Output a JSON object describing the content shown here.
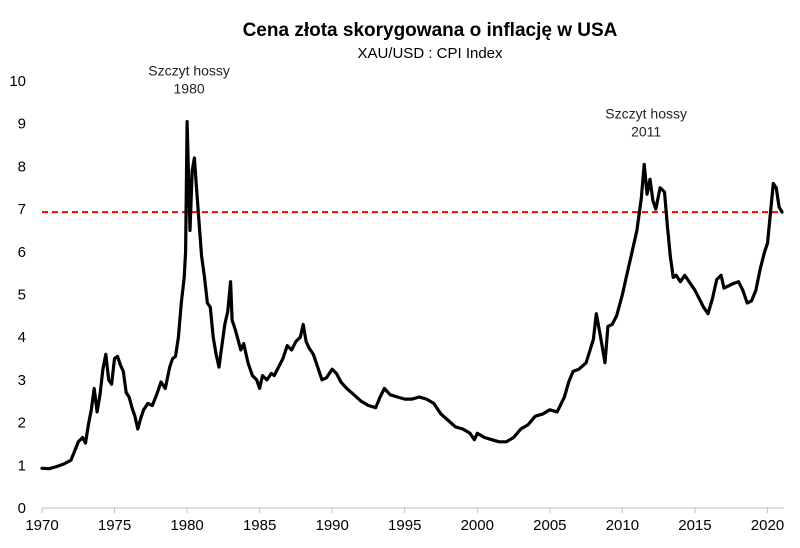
{
  "chart_data": {
    "type": "line",
    "title": "Cena złota skorygowana o inflację w USA",
    "subtitle": "XAU/USD : CPI Index",
    "xlabel": "",
    "ylabel": "",
    "xlim": [
      1970,
      2021
    ],
    "ylim": [
      0,
      10
    ],
    "xticks": [
      1970,
      1975,
      1980,
      1985,
      1990,
      1995,
      2000,
      2005,
      2010,
      2015,
      2020
    ],
    "xtick_labels": [
      "1970",
      "1975",
      "1980",
      "1985",
      "1990",
      "1995",
      "2000",
      "2005",
      "2010",
      "2015",
      "2020"
    ],
    "yticks": [
      0,
      1,
      2,
      3,
      4,
      5,
      6,
      7,
      8,
      9,
      10
    ],
    "ytick_labels": [
      "0",
      "1",
      "2",
      "3",
      "4",
      "5",
      "6",
      "7",
      "8",
      "9",
      "10"
    ],
    "grid": false,
    "reference_line": {
      "y": 6.93,
      "color": "#ff0000",
      "style": "dashed"
    },
    "annotations": [
      {
        "line1": "Szczyt hossy",
        "line2": "1980",
        "x": 1980.0,
        "y": 9.05
      },
      {
        "line1": "Szczyt hossy",
        "line2": "2011",
        "x": 2011.5,
        "y": 8.05
      }
    ],
    "series": [
      {
        "name": "XAU/USD : CPI Index",
        "color": "#000000",
        "x": [
          1970.0,
          1970.5,
          1971.0,
          1971.5,
          1972.0,
          1972.5,
          1972.8,
          1973.0,
          1973.2,
          1973.4,
          1973.6,
          1973.8,
          1974.0,
          1974.2,
          1974.4,
          1974.6,
          1974.8,
          1975.0,
          1975.2,
          1975.4,
          1975.6,
          1975.8,
          1976.0,
          1976.2,
          1976.4,
          1976.6,
          1976.8,
          1977.0,
          1977.3,
          1977.6,
          1977.9,
          1978.2,
          1978.5,
          1978.8,
          1979.0,
          1979.2,
          1979.4,
          1979.6,
          1979.8,
          1979.9,
          1980.0,
          1980.1,
          1980.2,
          1980.35,
          1980.5,
          1980.65,
          1980.8,
          1981.0,
          1981.2,
          1981.4,
          1981.6,
          1981.8,
          1982.0,
          1982.2,
          1982.4,
          1982.6,
          1982.8,
          1983.0,
          1983.1,
          1983.3,
          1983.5,
          1983.7,
          1983.9,
          1984.2,
          1984.5,
          1984.8,
          1985.0,
          1985.2,
          1985.5,
          1985.8,
          1986.0,
          1986.3,
          1986.6,
          1986.9,
          1987.2,
          1987.5,
          1987.8,
          1988.0,
          1988.2,
          1988.4,
          1988.7,
          1989.0,
          1989.3,
          1989.6,
          1990.0,
          1990.3,
          1990.6,
          1991.0,
          1991.5,
          1992.0,
          1992.5,
          1993.0,
          1993.3,
          1993.6,
          1994.0,
          1994.5,
          1995.0,
          1995.5,
          1996.0,
          1996.5,
          1997.0,
          1997.5,
          1998.0,
          1998.5,
          1999.0,
          1999.5,
          1999.8,
          2000.0,
          2000.5,
          2001.0,
          2001.5,
          2002.0,
          2002.5,
          2003.0,
          2003.5,
          2004.0,
          2004.5,
          2005.0,
          2005.5,
          2006.0,
          2006.3,
          2006.6,
          2007.0,
          2007.5,
          2008.0,
          2008.2,
          2008.5,
          2008.8,
          2009.0,
          2009.3,
          2009.6,
          2010.0,
          2010.3,
          2010.6,
          2011.0,
          2011.3,
          2011.5,
          2011.7,
          2011.9,
          2012.1,
          2012.3,
          2012.6,
          2012.9,
          2013.1,
          2013.3,
          2013.5,
          2013.7,
          2014.0,
          2014.3,
          2014.6,
          2015.0,
          2015.3,
          2015.6,
          2015.9,
          2016.2,
          2016.5,
          2016.8,
          2017.0,
          2017.3,
          2017.6,
          2018.0,
          2018.3,
          2018.6,
          2018.9,
          2019.2,
          2019.5,
          2019.8,
          2020.0,
          2020.2,
          2020.4,
          2020.6,
          2020.8,
          2021.0
        ],
        "y": [
          0.93,
          0.92,
          0.97,
          1.03,
          1.12,
          1.55,
          1.65,
          1.52,
          1.95,
          2.3,
          2.8,
          2.25,
          2.65,
          3.25,
          3.6,
          3.0,
          2.9,
          3.5,
          3.55,
          3.35,
          3.2,
          2.7,
          2.6,
          2.35,
          2.15,
          1.85,
          2.1,
          2.3,
          2.45,
          2.4,
          2.65,
          2.95,
          2.8,
          3.3,
          3.5,
          3.55,
          4.0,
          4.8,
          5.4,
          6.0,
          9.05,
          7.8,
          6.5,
          7.9,
          8.2,
          7.5,
          6.8,
          5.9,
          5.4,
          4.8,
          4.7,
          4.0,
          3.6,
          3.3,
          3.8,
          4.3,
          4.6,
          5.3,
          4.4,
          4.2,
          3.95,
          3.7,
          3.85,
          3.4,
          3.1,
          3.0,
          2.8,
          3.1,
          3.0,
          3.15,
          3.1,
          3.3,
          3.5,
          3.8,
          3.7,
          3.9,
          4.0,
          4.3,
          3.9,
          3.75,
          3.6,
          3.3,
          3.0,
          3.05,
          3.25,
          3.15,
          2.95,
          2.8,
          2.65,
          2.5,
          2.4,
          2.35,
          2.6,
          2.8,
          2.65,
          2.6,
          2.55,
          2.55,
          2.6,
          2.55,
          2.45,
          2.2,
          2.05,
          1.9,
          1.85,
          1.75,
          1.6,
          1.75,
          1.65,
          1.6,
          1.55,
          1.55,
          1.65,
          1.85,
          1.95,
          2.15,
          2.2,
          2.3,
          2.25,
          2.6,
          2.95,
          3.2,
          3.25,
          3.4,
          3.95,
          4.55,
          4.0,
          3.4,
          4.25,
          4.3,
          4.5,
          5.0,
          5.45,
          5.9,
          6.5,
          7.25,
          8.05,
          7.35,
          7.7,
          7.2,
          7.0,
          7.5,
          7.4,
          6.6,
          5.9,
          5.4,
          5.45,
          5.3,
          5.45,
          5.3,
          5.1,
          4.9,
          4.7,
          4.55,
          4.9,
          5.35,
          5.45,
          5.15,
          5.2,
          5.25,
          5.3,
          5.1,
          4.8,
          4.85,
          5.1,
          5.6,
          6.0,
          6.2,
          6.9,
          7.6,
          7.5,
          7.05,
          6.93
        ]
      }
    ]
  }
}
